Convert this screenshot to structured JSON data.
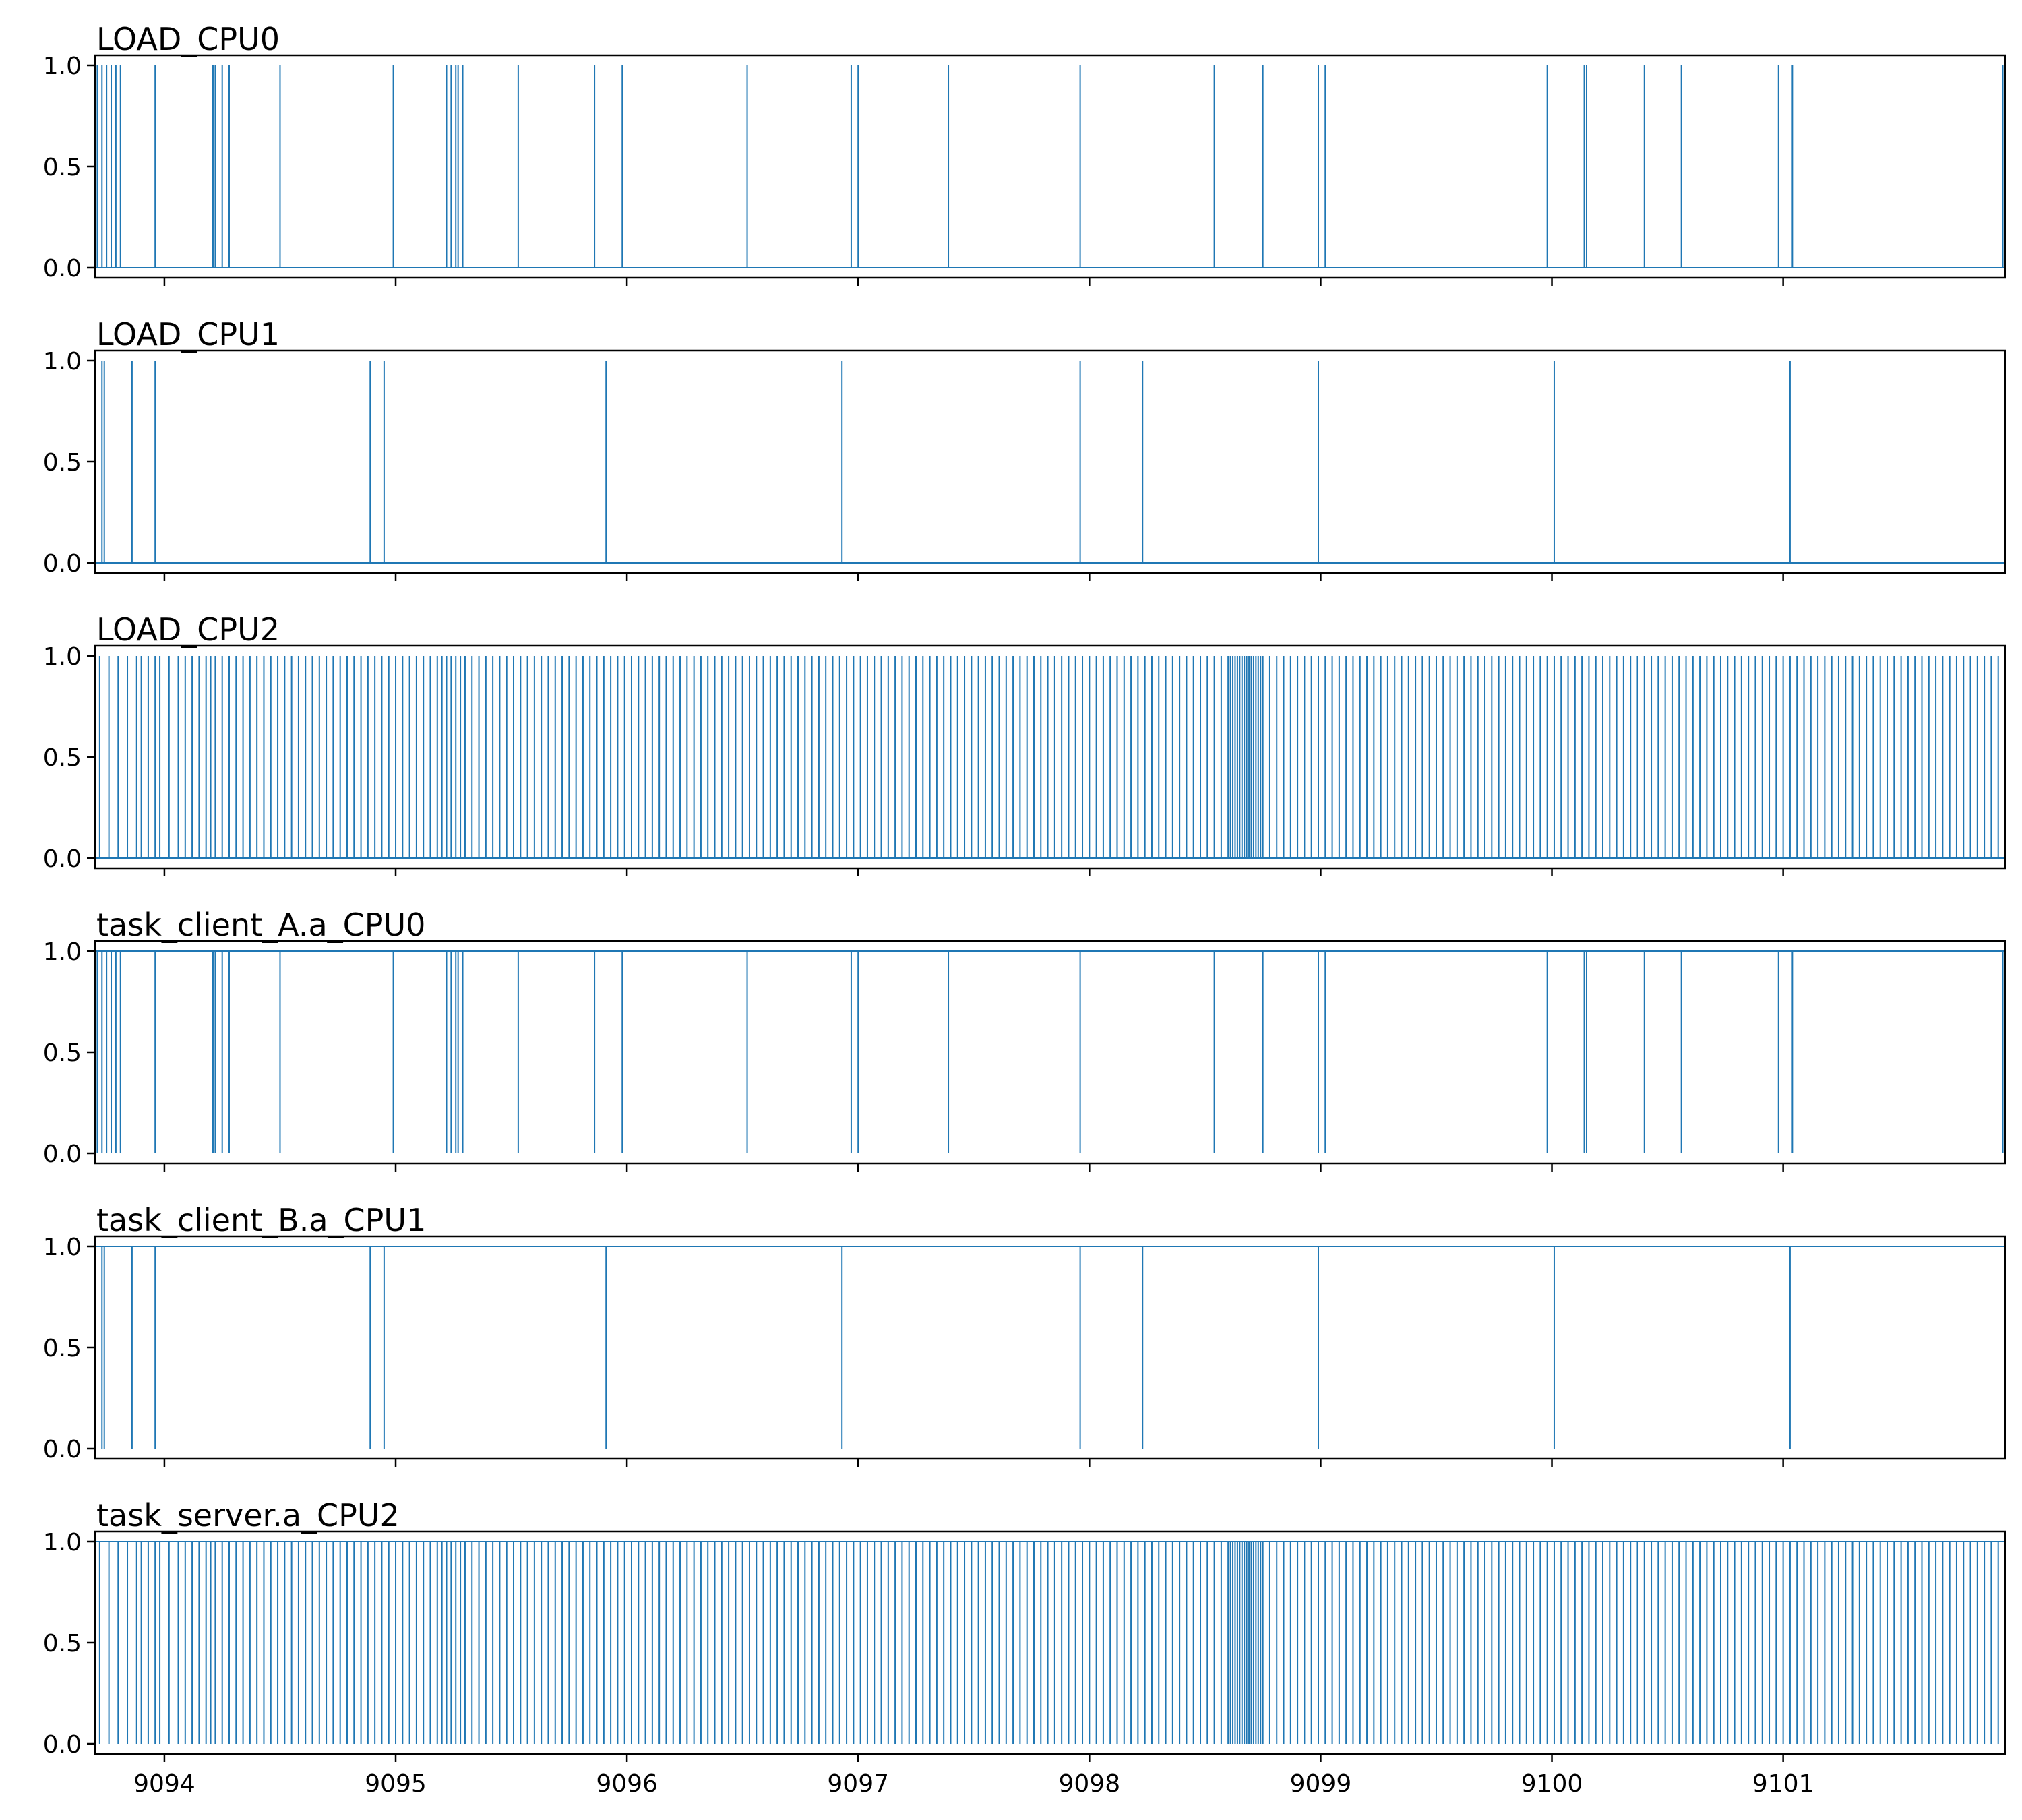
{
  "chart_data": [
    {
      "type": "line",
      "title": "LOAD_CPU0",
      "base_value": 0,
      "event_value": 1,
      "xlim": [
        9093.7,
        9101.96
      ],
      "ylim": [
        -0.05,
        1.05
      ],
      "xticks": [
        9094,
        9095,
        9096,
        9097,
        9098,
        9099,
        9100,
        9101
      ],
      "yticks": [
        0.0,
        0.5,
        1.0
      ],
      "show_xtick_labels": false,
      "events_x": [
        9093.71,
        9093.73,
        9093.75,
        9093.77,
        9093.79,
        9093.81,
        9093.96,
        9094.21,
        9094.22,
        9094.25,
        9094.28,
        9094.5,
        9094.99,
        9095.22,
        9095.24,
        9095.26,
        9095.27,
        9095.29,
        9095.53,
        9095.86,
        9095.98,
        9096.52,
        9096.97,
        9097.0,
        9097.39,
        9097.96,
        9098.54,
        9098.75,
        9098.99,
        9099.02,
        9099.98,
        9100.14,
        9100.15,
        9100.4,
        9100.56,
        9100.98,
        9101.04,
        9101.95
      ]
    },
    {
      "type": "line",
      "title": "LOAD_CPU1",
      "base_value": 0,
      "event_value": 1,
      "xlim": [
        9093.7,
        9101.96
      ],
      "ylim": [
        -0.05,
        1.05
      ],
      "xticks": [
        9094,
        9095,
        9096,
        9097,
        9098,
        9099,
        9100,
        9101
      ],
      "yticks": [
        0.0,
        0.5,
        1.0
      ],
      "show_xtick_labels": false,
      "events_x": [
        9093.73,
        9093.74,
        9093.86,
        9093.96,
        9094.89,
        9094.95,
        9095.91,
        9096.93,
        9097.96,
        9098.23,
        9098.99,
        9100.01,
        9101.03
      ]
    },
    {
      "type": "line",
      "title": "LOAD_CPU2",
      "base_value": 0,
      "event_value": 1,
      "xlim": [
        9093.7,
        9101.96
      ],
      "ylim": [
        -0.05,
        1.05
      ],
      "xticks": [
        9094,
        9095,
        9096,
        9097,
        9098,
        9099,
        9100,
        9101
      ],
      "yticks": [
        0.0,
        0.5,
        1.0
      ],
      "show_xtick_labels": false,
      "events_x": [
        9093.72,
        9093.76,
        9093.8,
        9093.84,
        9093.88,
        9093.9,
        9093.93,
        9093.96,
        9093.98,
        9094.02,
        9094.06,
        9094.09,
        9094.12,
        9094.15,
        9094.18,
        9094.2,
        9094.22,
        9094.25,
        9094.28,
        9094.31,
        9094.34,
        9094.37,
        9094.4,
        9094.43,
        9094.46,
        9094.49,
        9094.52,
        9094.55,
        9094.58,
        9094.61,
        9094.64,
        9094.67,
        9094.7,
        9094.73,
        9094.76,
        9094.79,
        9094.82,
        9094.85,
        9094.88,
        9094.91,
        9094.94,
        9094.97,
        9095.0,
        9095.03,
        9095.06,
        9095.09,
        9095.12,
        9095.15,
        9095.18,
        9095.2,
        9095.22,
        9095.24,
        9095.26,
        9095.28,
        9095.3,
        9095.33,
        9095.36,
        9095.39,
        9095.42,
        9095.45,
        9095.48,
        9095.51,
        9095.54,
        9095.57,
        9095.6,
        9095.63,
        9095.66,
        9095.69,
        9095.72,
        9095.75,
        9095.78,
        9095.81,
        9095.84,
        9095.87,
        9095.9,
        9095.93,
        9095.96,
        9095.99,
        9096.02,
        9096.05,
        9096.08,
        9096.11,
        9096.14,
        9096.17,
        9096.2,
        9096.23,
        9096.26,
        9096.29,
        9096.32,
        9096.35,
        9096.38,
        9096.41,
        9096.44,
        9096.47,
        9096.5,
        9096.53,
        9096.56,
        9096.59,
        9096.62,
        9096.65,
        9096.68,
        9096.71,
        9096.74,
        9096.77,
        9096.8,
        9096.83,
        9096.86,
        9096.89,
        9096.92,
        9096.95,
        9096.98,
        9097.01,
        9097.04,
        9097.07,
        9097.1,
        9097.13,
        9097.16,
        9097.19,
        9097.22,
        9097.25,
        9097.28,
        9097.31,
        9097.34,
        9097.37,
        9097.4,
        9097.43,
        9097.46,
        9097.49,
        9097.52,
        9097.55,
        9097.58,
        9097.61,
        9097.64,
        9097.67,
        9097.7,
        9097.73,
        9097.76,
        9097.79,
        9097.82,
        9097.85,
        9097.88,
        9097.91,
        9097.94,
        9097.97,
        9098.0,
        9098.03,
        9098.06,
        9098.09,
        9098.12,
        9098.15,
        9098.18,
        9098.21,
        9098.24,
        9098.27,
        9098.3,
        9098.33,
        9098.36,
        9098.39,
        9098.42,
        9098.45,
        9098.48,
        9098.51,
        9098.54,
        9098.57,
        9098.6,
        9098.61,
        9098.62,
        9098.63,
        9098.64,
        9098.65,
        9098.66,
        9098.67,
        9098.68,
        9098.69,
        9098.7,
        9098.71,
        9098.72,
        9098.73,
        9098.74,
        9098.75,
        9098.78,
        9098.81,
        9098.84,
        9098.87,
        9098.9,
        9098.93,
        9098.96,
        9098.99,
        9099.02,
        9099.05,
        9099.08,
        9099.11,
        9099.14,
        9099.17,
        9099.2,
        9099.23,
        9099.26,
        9099.29,
        9099.32,
        9099.35,
        9099.38,
        9099.41,
        9099.44,
        9099.47,
        9099.5,
        9099.53,
        9099.56,
        9099.59,
        9099.62,
        9099.65,
        9099.68,
        9099.71,
        9099.74,
        9099.77,
        9099.8,
        9099.83,
        9099.86,
        9099.89,
        9099.92,
        9099.95,
        9099.98,
        9100.01,
        9100.04,
        9100.07,
        9100.1,
        9100.13,
        9100.16,
        9100.19,
        9100.22,
        9100.25,
        9100.28,
        9100.31,
        9100.34,
        9100.37,
        9100.4,
        9100.43,
        9100.46,
        9100.49,
        9100.52,
        9100.55,
        9100.58,
        9100.61,
        9100.64,
        9100.67,
        9100.7,
        9100.73,
        9100.76,
        9100.79,
        9100.82,
        9100.85,
        9100.88,
        9100.91,
        9100.94,
        9100.97,
        9101.0,
        9101.03,
        9101.06,
        9101.09,
        9101.12,
        9101.15,
        9101.18,
        9101.21,
        9101.24,
        9101.27,
        9101.3,
        9101.33,
        9101.36,
        9101.39,
        9101.42,
        9101.45,
        9101.48,
        9101.51,
        9101.54,
        9101.57,
        9101.6,
        9101.63,
        9101.66,
        9101.69,
        9101.72,
        9101.75,
        9101.78,
        9101.81,
        9101.84,
        9101.87,
        9101.9,
        9101.93
      ]
    },
    {
      "type": "line",
      "title": "task_client_A.a_CPU0",
      "base_value": 1,
      "event_value": 0,
      "xlim": [
        9093.7,
        9101.96
      ],
      "ylim": [
        -0.05,
        1.05
      ],
      "xticks": [
        9094,
        9095,
        9096,
        9097,
        9098,
        9099,
        9100,
        9101
      ],
      "yticks": [
        0.0,
        0.5,
        1.0
      ],
      "show_xtick_labels": false,
      "events_x": [
        9093.71,
        9093.73,
        9093.75,
        9093.77,
        9093.79,
        9093.81,
        9093.96,
        9094.21,
        9094.22,
        9094.25,
        9094.28,
        9094.5,
        9094.99,
        9095.22,
        9095.24,
        9095.26,
        9095.27,
        9095.29,
        9095.53,
        9095.86,
        9095.98,
        9096.52,
        9096.97,
        9097.0,
        9097.39,
        9097.96,
        9098.54,
        9098.75,
        9098.99,
        9099.02,
        9099.98,
        9100.14,
        9100.15,
        9100.4,
        9100.56,
        9100.98,
        9101.04,
        9101.95
      ]
    },
    {
      "type": "line",
      "title": "task_client_B.a_CPU1",
      "base_value": 1,
      "event_value": 0,
      "xlim": [
        9093.7,
        9101.96
      ],
      "ylim": [
        -0.05,
        1.05
      ],
      "xticks": [
        9094,
        9095,
        9096,
        9097,
        9098,
        9099,
        9100,
        9101
      ],
      "yticks": [
        0.0,
        0.5,
        1.0
      ],
      "show_xtick_labels": false,
      "events_x": [
        9093.73,
        9093.74,
        9093.86,
        9093.96,
        9094.89,
        9094.95,
        9095.91,
        9096.93,
        9097.96,
        9098.23,
        9098.99,
        9100.01,
        9101.03
      ]
    },
    {
      "type": "line",
      "title": "task_server.a_CPU2",
      "base_value": 1,
      "event_value": 0,
      "xlim": [
        9093.7,
        9101.96
      ],
      "ylim": [
        -0.05,
        1.05
      ],
      "xticks": [
        9094,
        9095,
        9096,
        9097,
        9098,
        9099,
        9100,
        9101
      ],
      "yticks": [
        0.0,
        0.5,
        1.0
      ],
      "show_xtick_labels": true,
      "events_x": [
        9093.72,
        9093.76,
        9093.8,
        9093.84,
        9093.88,
        9093.9,
        9093.93,
        9093.96,
        9093.98,
        9094.02,
        9094.06,
        9094.09,
        9094.12,
        9094.15,
        9094.18,
        9094.2,
        9094.22,
        9094.25,
        9094.28,
        9094.31,
        9094.34,
        9094.37,
        9094.4,
        9094.43,
        9094.46,
        9094.49,
        9094.52,
        9094.55,
        9094.58,
        9094.61,
        9094.64,
        9094.67,
        9094.7,
        9094.73,
        9094.76,
        9094.79,
        9094.82,
        9094.85,
        9094.88,
        9094.91,
        9094.94,
        9094.97,
        9095.0,
        9095.03,
        9095.06,
        9095.09,
        9095.12,
        9095.15,
        9095.18,
        9095.2,
        9095.22,
        9095.24,
        9095.26,
        9095.28,
        9095.3,
        9095.33,
        9095.36,
        9095.39,
        9095.42,
        9095.45,
        9095.48,
        9095.51,
        9095.54,
        9095.57,
        9095.6,
        9095.63,
        9095.66,
        9095.69,
        9095.72,
        9095.75,
        9095.78,
        9095.81,
        9095.84,
        9095.87,
        9095.9,
        9095.93,
        9095.96,
        9095.99,
        9096.02,
        9096.05,
        9096.08,
        9096.11,
        9096.14,
        9096.17,
        9096.2,
        9096.23,
        9096.26,
        9096.29,
        9096.32,
        9096.35,
        9096.38,
        9096.41,
        9096.44,
        9096.47,
        9096.5,
        9096.53,
        9096.56,
        9096.59,
        9096.62,
        9096.65,
        9096.68,
        9096.71,
        9096.74,
        9096.77,
        9096.8,
        9096.83,
        9096.86,
        9096.89,
        9096.92,
        9096.95,
        9096.98,
        9097.01,
        9097.04,
        9097.07,
        9097.1,
        9097.13,
        9097.16,
        9097.19,
        9097.22,
        9097.25,
        9097.28,
        9097.31,
        9097.34,
        9097.37,
        9097.4,
        9097.43,
        9097.46,
        9097.49,
        9097.52,
        9097.55,
        9097.58,
        9097.61,
        9097.64,
        9097.67,
        9097.7,
        9097.73,
        9097.76,
        9097.79,
        9097.82,
        9097.85,
        9097.88,
        9097.91,
        9097.94,
        9097.97,
        9098.0,
        9098.03,
        9098.06,
        9098.09,
        9098.12,
        9098.15,
        9098.18,
        9098.21,
        9098.24,
        9098.27,
        9098.3,
        9098.33,
        9098.36,
        9098.39,
        9098.42,
        9098.45,
        9098.48,
        9098.51,
        9098.54,
        9098.57,
        9098.6,
        9098.61,
        9098.62,
        9098.63,
        9098.64,
        9098.65,
        9098.66,
        9098.67,
        9098.68,
        9098.69,
        9098.7,
        9098.71,
        9098.72,
        9098.73,
        9098.74,
        9098.75,
        9098.78,
        9098.81,
        9098.84,
        9098.87,
        9098.9,
        9098.93,
        9098.96,
        9098.99,
        9099.02,
        9099.05,
        9099.08,
        9099.11,
        9099.14,
        9099.17,
        9099.2,
        9099.23,
        9099.26,
        9099.29,
        9099.32,
        9099.35,
        9099.38,
        9099.41,
        9099.44,
        9099.47,
        9099.5,
        9099.53,
        9099.56,
        9099.59,
        9099.62,
        9099.65,
        9099.68,
        9099.71,
        9099.74,
        9099.77,
        9099.8,
        9099.83,
        9099.86,
        9099.89,
        9099.92,
        9099.95,
        9099.98,
        9100.01,
        9100.04,
        9100.07,
        9100.1,
        9100.13,
        9100.16,
        9100.19,
        9100.22,
        9100.25,
        9100.28,
        9100.31,
        9100.34,
        9100.37,
        9100.4,
        9100.43,
        9100.46,
        9100.49,
        9100.52,
        9100.55,
        9100.58,
        9100.61,
        9100.64,
        9100.67,
        9100.7,
        9100.73,
        9100.76,
        9100.79,
        9100.82,
        9100.85,
        9100.88,
        9100.91,
        9100.94,
        9100.97,
        9101.0,
        9101.03,
        9101.06,
        9101.09,
        9101.12,
        9101.15,
        9101.18,
        9101.21,
        9101.24,
        9101.27,
        9101.3,
        9101.33,
        9101.36,
        9101.39,
        9101.42,
        9101.45,
        9101.48,
        9101.51,
        9101.54,
        9101.57,
        9101.6,
        9101.63,
        9101.66,
        9101.69,
        9101.72,
        9101.75,
        9101.78,
        9101.81,
        9101.84,
        9101.87,
        9101.9,
        9101.93
      ]
    }
  ]
}
